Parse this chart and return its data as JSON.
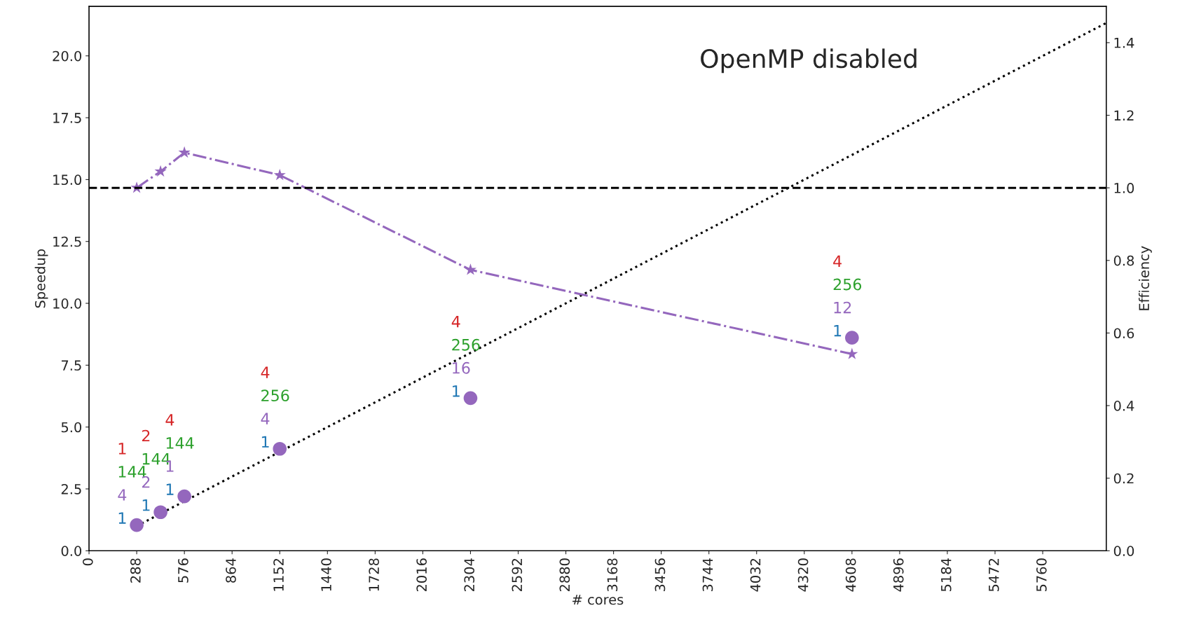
{
  "chart_data": {
    "type": "scatter",
    "title": "OpenMP disabled",
    "xlabel": "# cores",
    "ylabel": "Speedup",
    "y2label": "Efficiency",
    "xlim": [
      0,
      6144
    ],
    "xticks": [
      0,
      288,
      576,
      864,
      1152,
      1440,
      1728,
      2016,
      2304,
      2592,
      2880,
      3168,
      3456,
      3744,
      4032,
      4320,
      4608,
      4896,
      5184,
      5472,
      5760
    ],
    "ylim": [
      0,
      22
    ],
    "yticks": [
      {
        "value": 0,
        "label": "0.0"
      },
      {
        "value": 2.5,
        "label": "2.5"
      },
      {
        "value": 5,
        "label": "5.0"
      },
      {
        "value": 7.5,
        "label": "7.5"
      },
      {
        "value": 10,
        "label": "10.0"
      },
      {
        "value": 12.5,
        "label": "12.5"
      },
      {
        "value": 15,
        "label": "15.0"
      },
      {
        "value": 17.5,
        "label": "17.5"
      },
      {
        "value": 20,
        "label": "20.0"
      }
    ],
    "y2lim": [
      0,
      1.5
    ],
    "y2ticks": [
      {
        "value": 0,
        "label": "0.0"
      },
      {
        "value": 0.2,
        "label": "0.2"
      },
      {
        "value": 0.4,
        "label": "0.4"
      },
      {
        "value": 0.6,
        "label": "0.6"
      },
      {
        "value": 0.8,
        "label": "0.8"
      },
      {
        "value": 1.0,
        "label": "1.0"
      },
      {
        "value": 1.2,
        "label": "1.2"
      },
      {
        "value": 1.4,
        "label": "1.4"
      }
    ],
    "grid": false,
    "legend": false,
    "series": [
      {
        "color": "#9467bd",
        "marker": "circle",
        "x": [
          288,
          432,
          576,
          1152,
          2304,
          4608
        ],
        "values": [
          1.04,
          1.56,
          2.2,
          4.12,
          6.17,
          8.61
        ]
      },
      {
        "type": "line",
        "axis": "y2",
        "color": "#9467bd",
        "marker": "star",
        "line_style": "dashdot",
        "x": [
          288,
          432,
          576,
          1152,
          2304,
          4608
        ],
        "values": [
          1.0,
          1.045,
          1.097,
          1.035,
          0.774,
          0.542
        ]
      },
      {
        "type": "line",
        "color": "#000000",
        "marker": "none",
        "line_style": "dotted",
        "x": [
          288,
          6144
        ],
        "values": [
          1,
          21.33
        ]
      }
    ],
    "ref_lines": [
      {
        "axis": "y2",
        "value": 1.0,
        "color": "#000000",
        "line_style": "dashed"
      }
    ],
    "annotations": [
      "1",
      "144",
      "4",
      "1",
      "2",
      "144",
      "2",
      "1",
      "4",
      "144",
      "1",
      "1",
      "4",
      "256",
      "4",
      "1",
      "4",
      "256",
      "16",
      "1",
      "4",
      "256",
      "12",
      "1"
    ]
  }
}
